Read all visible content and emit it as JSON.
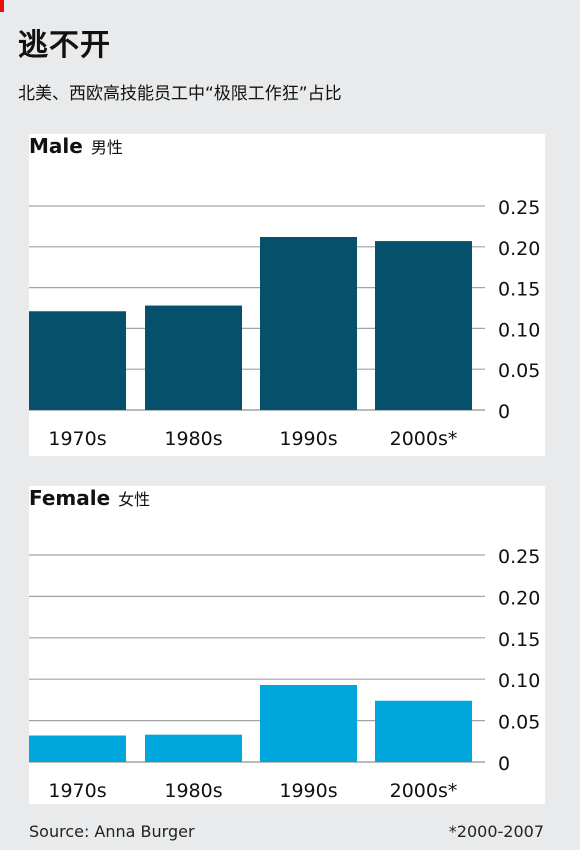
{
  "title": "逃不开",
  "subtitle": "北美、西欧高技能员工中“极限工作狂”占比",
  "source": "Source: Anna Burger",
  "footnote": "*2000-2007",
  "colors": {
    "male": "#05506a",
    "female": "#00a7dd",
    "grid": "#a3a3a3",
    "background": "#e9eaeb"
  },
  "chart_data": [
    {
      "type": "bar",
      "title": "Male 男性",
      "label_en": "Male",
      "label_cn": "男性",
      "categories": [
        "1970s",
        "1980s",
        "1990s",
        "2000s*"
      ],
      "values": [
        0.121,
        0.128,
        0.212,
        0.207
      ],
      "ylim": [
        0,
        0.25
      ],
      "yticks": [
        "0",
        "0.05",
        "0.10",
        "0.15",
        "0.20",
        "0.25"
      ],
      "grid": true
    },
    {
      "type": "bar",
      "title": "Female 女性",
      "label_en": "Female",
      "label_cn": "女性",
      "categories": [
        "1970s",
        "1980s",
        "1990s",
        "2000s*"
      ],
      "values": [
        0.032,
        0.033,
        0.093,
        0.074
      ],
      "ylim": [
        0,
        0.25
      ],
      "yticks": [
        "0",
        "0.05",
        "0.10",
        "0.15",
        "0.20",
        "0.25"
      ],
      "grid": true
    }
  ]
}
